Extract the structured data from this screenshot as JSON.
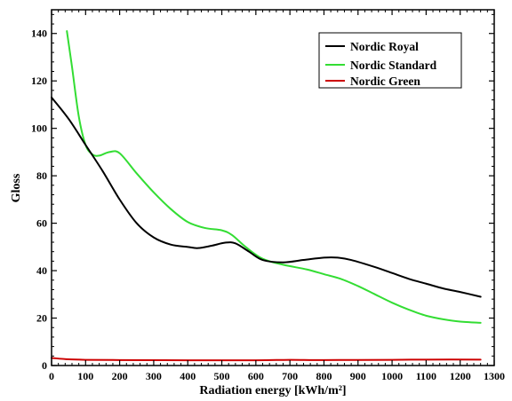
{
  "chart_data": {
    "type": "line",
    "title": "",
    "xlabel": "Radiation energy [kWh/m²]",
    "ylabel": "Gloss",
    "xlim": [
      0,
      1300
    ],
    "ylim": [
      0,
      150
    ],
    "x_major_ticks": [
      0,
      100,
      200,
      300,
      400,
      500,
      600,
      700,
      800,
      900,
      1000,
      1100,
      1200,
      1300
    ],
    "y_major_ticks": [
      0,
      20,
      40,
      60,
      80,
      100,
      120,
      140
    ],
    "x_minor_step": 20,
    "y_minor_step": 4,
    "grid": false,
    "legend_position": "top-right",
    "series": [
      {
        "name": "Nordic Royal",
        "color": "#000000",
        "points": [
          [
            0,
            113
          ],
          [
            50,
            104
          ],
          [
            100,
            93
          ],
          [
            150,
            82
          ],
          [
            200,
            70
          ],
          [
            250,
            60
          ],
          [
            300,
            54
          ],
          [
            350,
            51
          ],
          [
            400,
            50
          ],
          [
            430,
            49.5
          ],
          [
            470,
            50.5
          ],
          [
            510,
            51.8
          ],
          [
            540,
            51.5
          ],
          [
            580,
            48
          ],
          [
            620,
            44.5
          ],
          [
            680,
            43.5
          ],
          [
            740,
            44.5
          ],
          [
            800,
            45.5
          ],
          [
            840,
            45.5
          ],
          [
            880,
            44.5
          ],
          [
            950,
            41.5
          ],
          [
            1000,
            39
          ],
          [
            1050,
            36.5
          ],
          [
            1100,
            34.5
          ],
          [
            1150,
            32.5
          ],
          [
            1200,
            31
          ],
          [
            1260,
            29
          ]
        ]
      },
      {
        "name": "Nordic Standard",
        "color": "#33dd33",
        "points": [
          [
            45,
            141
          ],
          [
            60,
            126
          ],
          [
            80,
            105
          ],
          [
            100,
            93
          ],
          [
            120,
            89
          ],
          [
            140,
            88.5
          ],
          [
            170,
            90
          ],
          [
            200,
            89.5
          ],
          [
            250,
            81
          ],
          [
            300,
            73
          ],
          [
            350,
            66
          ],
          [
            400,
            60.5
          ],
          [
            450,
            58
          ],
          [
            500,
            57
          ],
          [
            530,
            55
          ],
          [
            570,
            50
          ],
          [
            620,
            45
          ],
          [
            680,
            42.5
          ],
          [
            750,
            40.5
          ],
          [
            800,
            38.5
          ],
          [
            850,
            36.5
          ],
          [
            900,
            33.5
          ],
          [
            950,
            30
          ],
          [
            1000,
            26.5
          ],
          [
            1050,
            23.5
          ],
          [
            1100,
            21
          ],
          [
            1150,
            19.5
          ],
          [
            1200,
            18.5
          ],
          [
            1260,
            18
          ]
        ]
      },
      {
        "name": "Nordic Green",
        "color": "#cc0000",
        "points": [
          [
            0,
            3.2
          ],
          [
            50,
            2.6
          ],
          [
            100,
            2.4
          ],
          [
            200,
            2.3
          ],
          [
            400,
            2.2
          ],
          [
            600,
            2.2
          ],
          [
            700,
            2.4
          ],
          [
            800,
            2.3
          ],
          [
            1000,
            2.4
          ],
          [
            1100,
            2.5
          ],
          [
            1260,
            2.5
          ]
        ]
      }
    ]
  }
}
